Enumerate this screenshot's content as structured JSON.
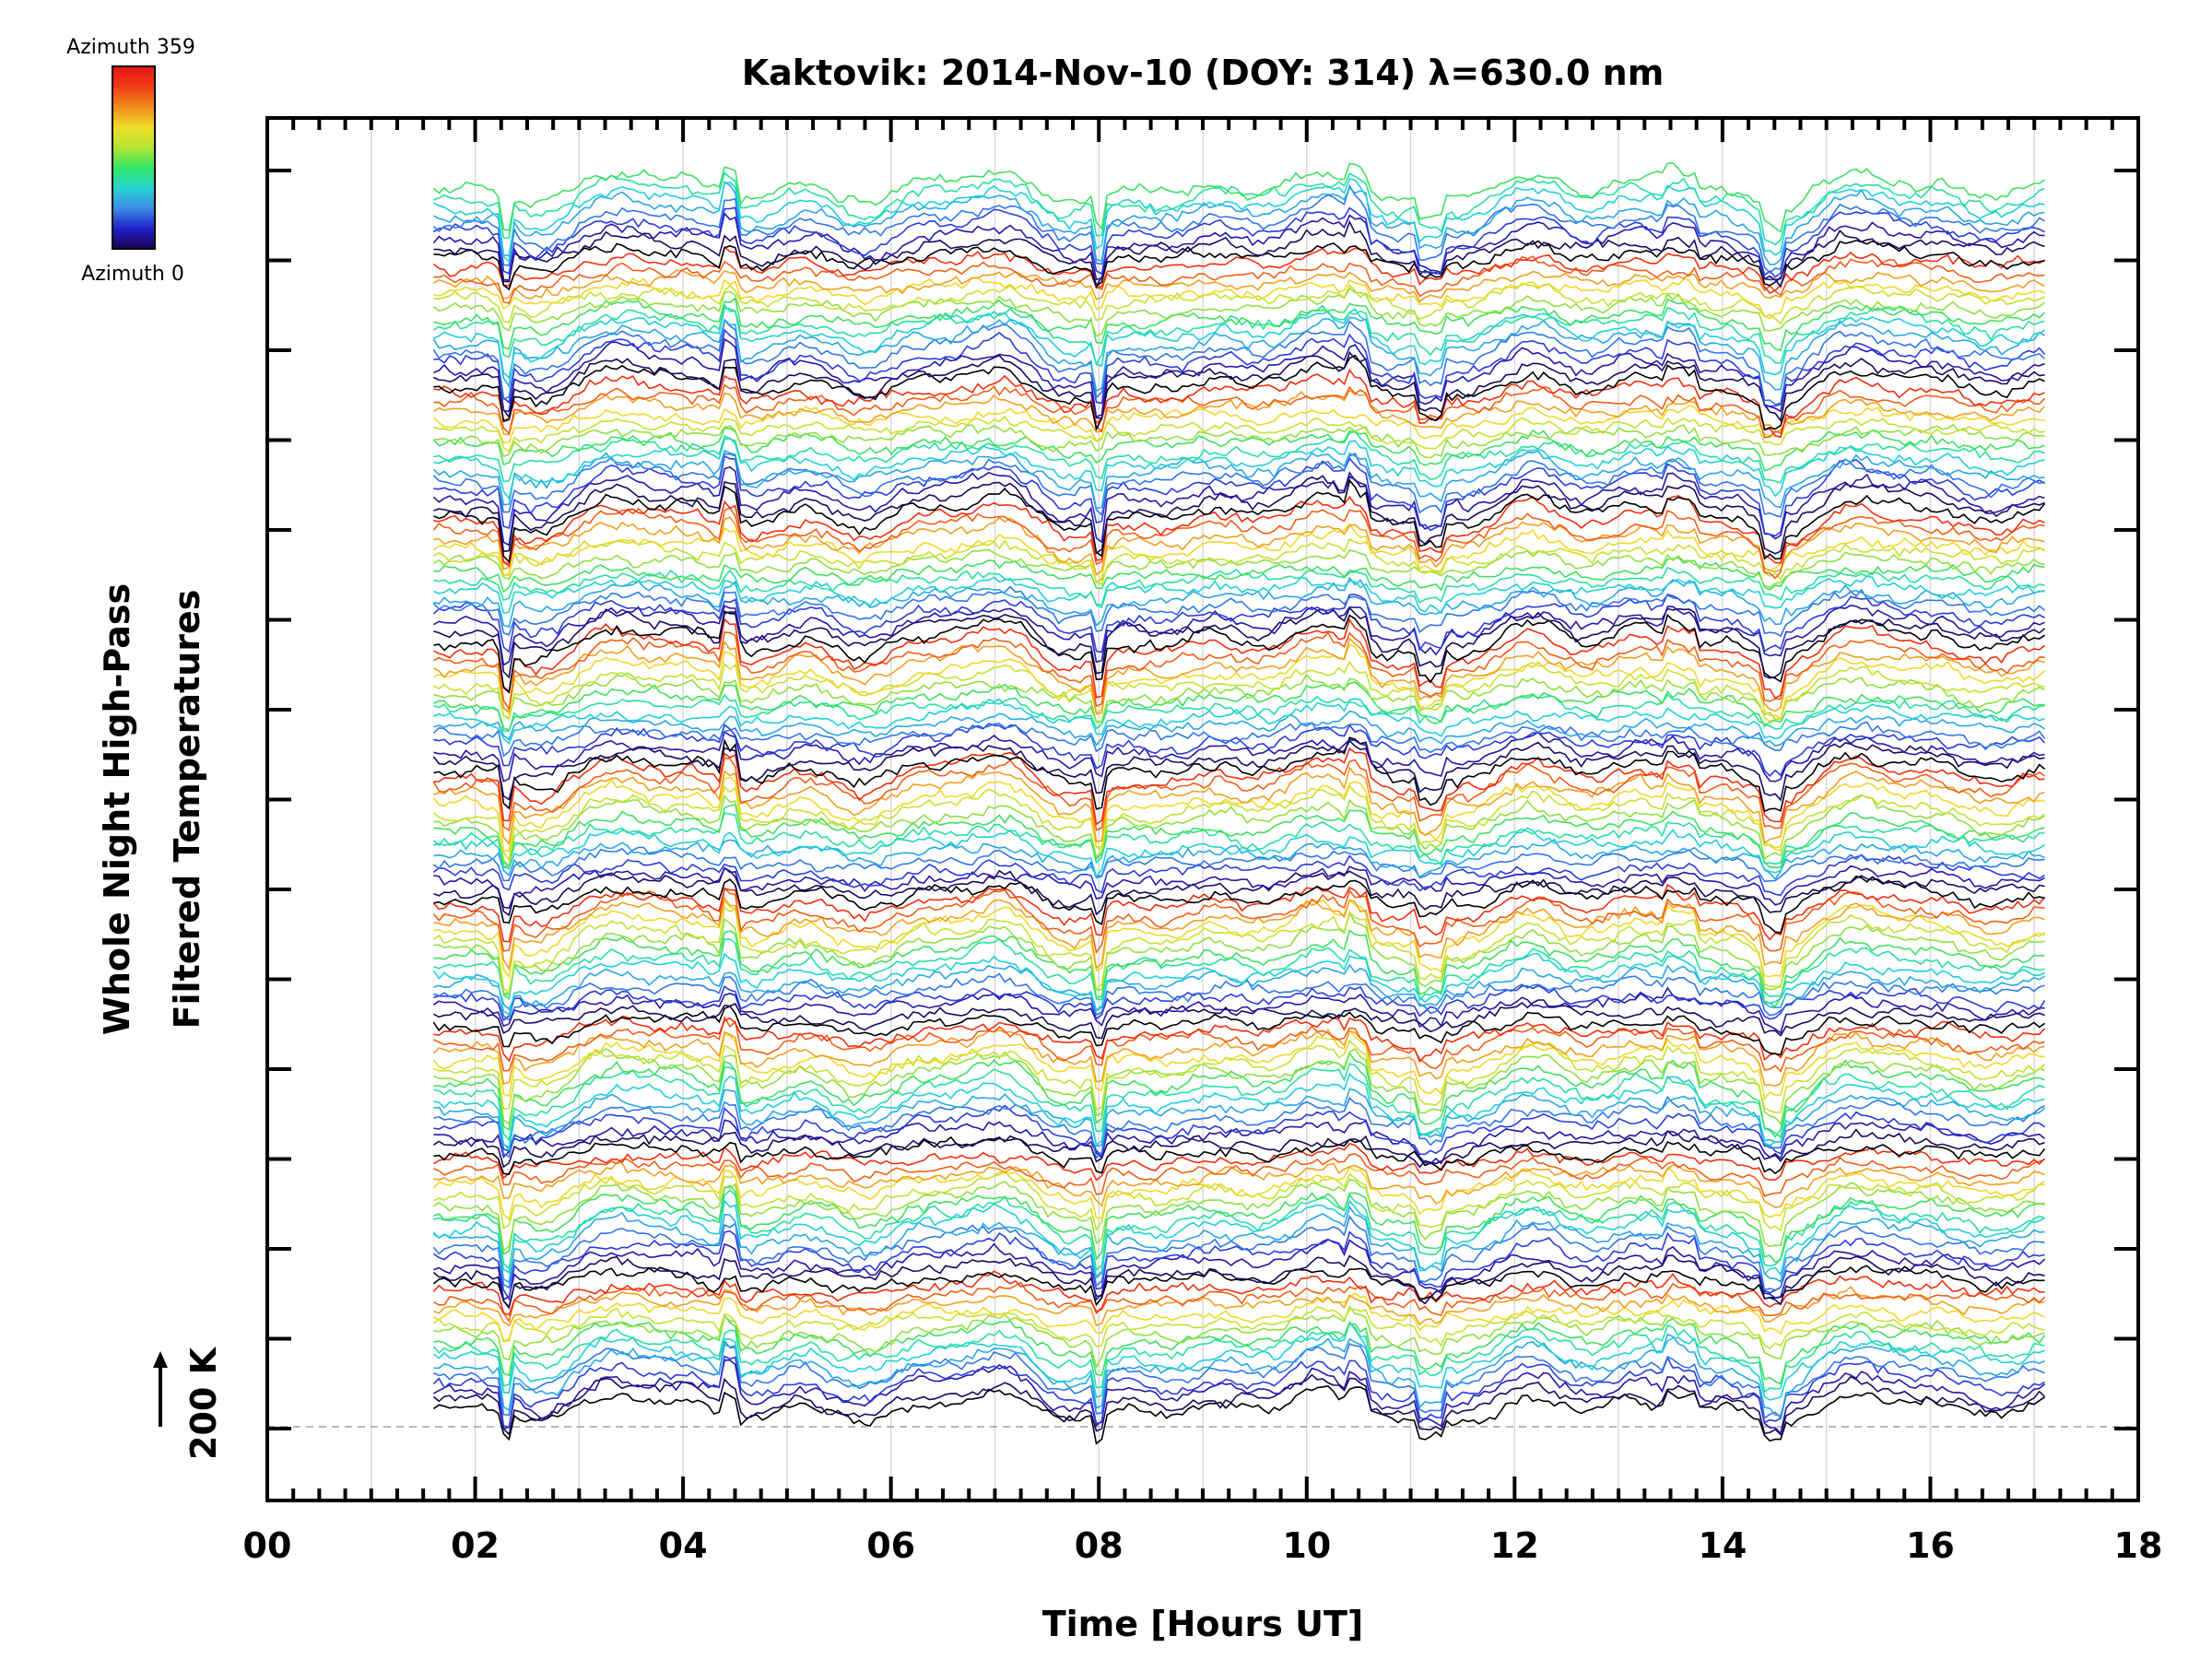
{
  "chart_data": {
    "type": "line",
    "title": "Kaktovik: 2014-Nov-10 (DOY: 314) λ=630.0 nm",
    "xlabel": "Time [Hours UT]",
    "ylabel_line1": "Whole Night High-Pass",
    "ylabel_line2": "Filtered Temperatures",
    "scale_bar_label": "200 K",
    "xlim": [
      0,
      18
    ],
    "x_ticks": [
      "00",
      "02",
      "04",
      "06",
      "08",
      "10",
      "12",
      "14",
      "16",
      "18"
    ],
    "x_tick_values": [
      0,
      2,
      4,
      6,
      8,
      10,
      12,
      14,
      16,
      18
    ],
    "x_start": 1.6,
    "x_end": 17.1,
    "n_traces": 144,
    "grid_vertical_x": [
      1,
      2,
      3,
      4,
      5,
      6,
      7,
      8,
      9,
      10,
      11,
      12,
      13,
      14,
      15,
      16,
      17
    ],
    "colorbar": {
      "top_label": "Azimuth 359",
      "bottom_label": "Azimuth 0",
      "colors": [
        "#1a0050",
        "#2020c8",
        "#3c8ce6",
        "#28d2d2",
        "#32e664",
        "#b4e632",
        "#f0dc28",
        "#f08c1e",
        "#f03c14",
        "#e61414"
      ]
    },
    "trace_color_cycle": [
      "#000000",
      "#1a0a60",
      "#2418a8",
      "#2c3cdc",
      "#3078e8",
      "#28a8e4",
      "#20d0d8",
      "#28e0a0",
      "#40e060",
      "#90e040",
      "#c8e030",
      "#f0d828",
      "#f0a020",
      "#f06018",
      "#f03010"
    ]
  }
}
